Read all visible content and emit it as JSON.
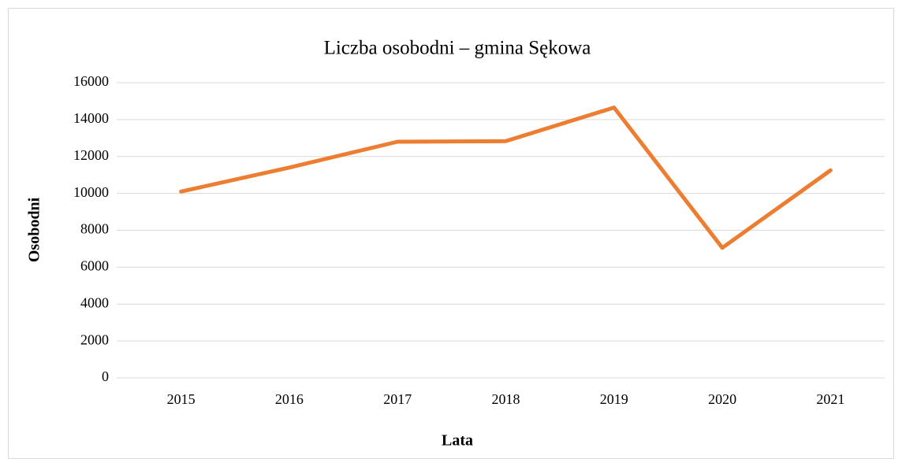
{
  "chart_data": {
    "type": "line",
    "title": "Liczba osobodni – gmina Sękowa",
    "x_label": "Lata",
    "y_label": "Osobodni",
    "categories": [
      "2015",
      "2016",
      "2017",
      "2018",
      "2019",
      "2020",
      "2021"
    ],
    "series": [
      {
        "name": "Osobodni",
        "color": "#ed7d31",
        "values": [
          10100,
          11400,
          12800,
          12830,
          14650,
          7050,
          11250
        ]
      }
    ],
    "ylim": [
      0,
      16000
    ],
    "yticks": [
      0,
      2000,
      4000,
      6000,
      8000,
      10000,
      12000,
      14000,
      16000
    ],
    "grid": true
  }
}
